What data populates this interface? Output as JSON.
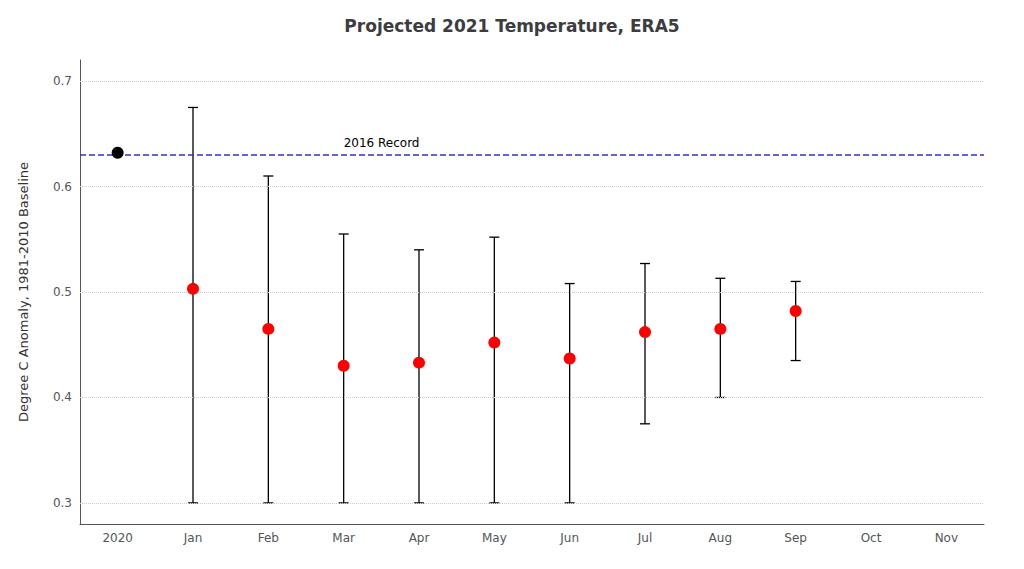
{
  "chart_data": {
    "type": "scatter",
    "title": "Projected 2021 Temperature, ERA5",
    "y_label": "Degree C Anomaly, 1981-2010 Baseline",
    "categories": [
      "2020",
      "Jan",
      "Feb",
      "Mar",
      "Apr",
      "May",
      "Jun",
      "Jul",
      "Aug",
      "Sep",
      "Oct",
      "Nov"
    ],
    "ylim": [
      0.28,
      0.72
    ],
    "yticks": [
      0.3,
      0.4,
      0.5,
      0.6,
      0.7
    ],
    "grid": true,
    "series": [
      {
        "color": "black",
        "marker": "circle",
        "values": [
          0.632,
          null,
          null,
          null,
          null,
          null,
          null,
          null,
          null,
          null,
          null,
          null
        ]
      },
      {
        "color": "red",
        "marker": "circle",
        "values": [
          null,
          0.503,
          0.465,
          0.43,
          0.433,
          0.452,
          0.437,
          0.462,
          0.465,
          0.482,
          null,
          null
        ],
        "lower": [
          null,
          0.3,
          0.3,
          0.3,
          0.3,
          0.3,
          0.3,
          0.375,
          0.4,
          0.435,
          null,
          null
        ],
        "upper": [
          null,
          0.675,
          0.61,
          0.555,
          0.54,
          0.552,
          0.508,
          0.527,
          0.513,
          0.51,
          null,
          null
        ]
      }
    ],
    "annotations": [
      {
        "type": "line",
        "y": 0.632,
        "text": "2016 Record",
        "x": "Mar",
        "color": "#3333cc",
        "line_style": "dashed"
      }
    ]
  }
}
